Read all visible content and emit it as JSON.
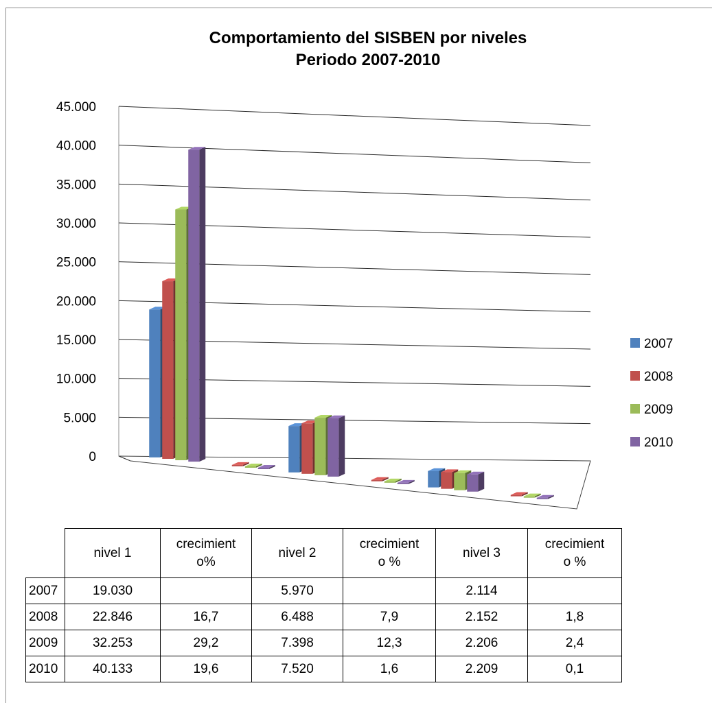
{
  "chart_data": {
    "type": "bar",
    "title": [
      "Comportamiento del SISBEN por niveles",
      "Periodo 2007-2010"
    ],
    "categories": [
      "nivel 1",
      "crecimiento%",
      "nivel 2",
      "crecimiento %",
      "nivel 3",
      "crecimiento %"
    ],
    "series": [
      {
        "name": "2007",
        "color": "#4F81BD",
        "values": [
          19030,
          null,
          5970,
          null,
          2114,
          null
        ]
      },
      {
        "name": "2008",
        "color": "#C0504D",
        "values": [
          22846,
          16.7,
          6488,
          7.9,
          2152,
          1.8
        ]
      },
      {
        "name": "2009",
        "color": "#9BBB59",
        "values": [
          32253,
          29.2,
          7398,
          12.3,
          2206,
          2.4
        ]
      },
      {
        "name": "2010",
        "color": "#8064A2",
        "values": [
          40133,
          19.6,
          7520,
          1.6,
          2209,
          0.1
        ]
      }
    ],
    "ylim": [
      0,
      45000
    ],
    "yticks": [
      "0",
      "5.000",
      "10.000",
      "15.000",
      "20.000",
      "25.000",
      "30.000",
      "35.000",
      "40.000",
      "45.000"
    ],
    "grid": true,
    "legend": "right",
    "three_d": true
  },
  "table": {
    "headers": [
      "nivel 1",
      "crecimient\no%",
      "nivel 2",
      "crecimient\no %",
      "nivel 3",
      "crecimient\no %"
    ],
    "rows": [
      {
        "year": "2007",
        "cells": [
          "19.030",
          "",
          "5.970",
          "",
          "2.114",
          ""
        ]
      },
      {
        "year": "2008",
        "cells": [
          "22.846",
          "16,7",
          "6.488",
          "7,9",
          "2.152",
          "1,8"
        ]
      },
      {
        "year": "2009",
        "cells": [
          "32.253",
          "29,2",
          "7.398",
          "12,3",
          "2.206",
          "2,4"
        ]
      },
      {
        "year": "2010",
        "cells": [
          "40.133",
          "19,6",
          "7.520",
          "1,6",
          "2.209",
          "0,1"
        ]
      }
    ]
  }
}
